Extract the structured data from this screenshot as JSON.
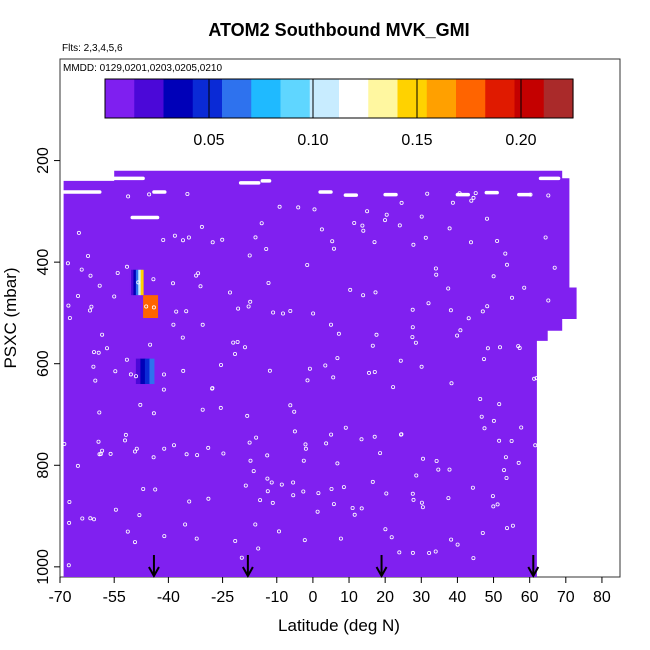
{
  "chart_data": {
    "type": "heatmap",
    "title": "ATOM2 Southbound MVK_GMI",
    "flights_label": "Flts: 2,3,4,5,6",
    "dates_label": "MMDD: 0129,0201,0203,0205,0210",
    "xlabel": "Latitude (deg N)",
    "ylabel": "PSXC (mbar)",
    "xlim": [
      -70,
      85
    ],
    "ylim": [
      1020,
      0
    ],
    "x_ticks": [
      -70,
      -55,
      -40,
      -25,
      -10,
      0,
      10,
      20,
      30,
      40,
      50,
      60,
      70,
      80
    ],
    "y_ticks": [
      200,
      400,
      600,
      800,
      1000
    ],
    "colorbar": {
      "min": 0,
      "max": 0.225,
      "tick_values": [
        0.05,
        0.1,
        0.15,
        0.2
      ],
      "tick_labels": [
        "0.05",
        "0.10",
        "0.15",
        "0.20"
      ],
      "colors": [
        "#7f1ff0",
        "#4b08d8",
        "#0000b8",
        "#0a2ad6",
        "#2e72ee",
        "#1fbaff",
        "#5fd6ff",
        "#c8ecff",
        "#ffffff",
        "#fff7a0",
        "#ffd200",
        "#ffa000",
        "#ff6400",
        "#e01a00",
        "#c40000",
        "#aa2a2a"
      ]
    },
    "background_value": 0.0,
    "background_color": "#8020f0",
    "high_value_regions": [
      {
        "lat_range": [
          -51,
          -47
        ],
        "p_range": [
          415,
          465
        ],
        "values": [
          0.005,
          0.02,
          0.04,
          0.07,
          0.11,
          0.15
        ]
      },
      {
        "lat_range": [
          -47,
          -43
        ],
        "p_range": [
          465,
          510
        ],
        "values": [
          0.17
        ]
      },
      {
        "lat_range": [
          -49,
          -44
        ],
        "p_range": [
          590,
          640
        ],
        "values": [
          0.015,
          0.03,
          0.05,
          0.065
        ]
      }
    ],
    "flight_arrows_lat": [
      -44,
      -18,
      19,
      61
    ]
  }
}
